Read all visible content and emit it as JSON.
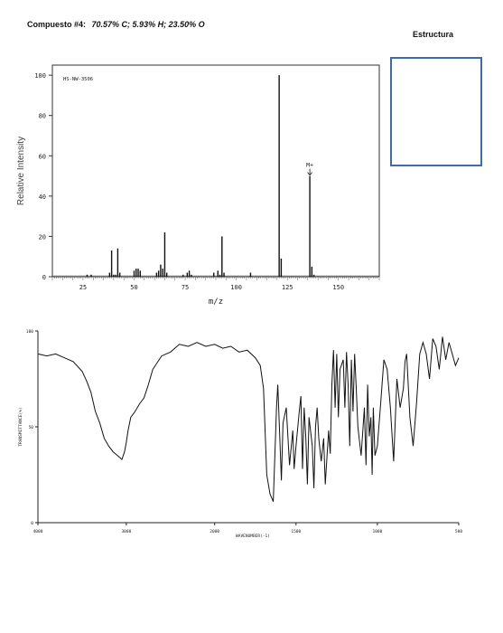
{
  "header": {
    "compound_label": "Compuesto #4:",
    "formula": "70.57% C;  5.93% H;  23.50% O",
    "structure_label": "Estructura"
  },
  "chart_data": [
    {
      "type": "bar",
      "name": "mass-spectrum",
      "code": "HS-NW-3506",
      "xlabel": "m/z",
      "ylabel": "Relative Intensity",
      "xlim": [
        10,
        170
      ],
      "ylim": [
        0,
        105
      ],
      "x_ticks": [
        25,
        50,
        75,
        100,
        125,
        150
      ],
      "y_ticks": [
        0,
        20,
        40,
        60,
        80,
        100
      ],
      "annotation": {
        "text": "M+",
        "x": 136
      },
      "peaks": [
        {
          "x": 27,
          "y": 1
        },
        {
          "x": 29,
          "y": 1
        },
        {
          "x": 38,
          "y": 2
        },
        {
          "x": 39,
          "y": 13
        },
        {
          "x": 40,
          "y": 1
        },
        {
          "x": 41,
          "y": 1
        },
        {
          "x": 42,
          "y": 14
        },
        {
          "x": 43,
          "y": 2
        },
        {
          "x": 50,
          "y": 3
        },
        {
          "x": 51,
          "y": 4
        },
        {
          "x": 52,
          "y": 4
        },
        {
          "x": 53,
          "y": 3
        },
        {
          "x": 61,
          "y": 2
        },
        {
          "x": 62,
          "y": 3
        },
        {
          "x": 63,
          "y": 6
        },
        {
          "x": 64,
          "y": 4
        },
        {
          "x": 65,
          "y": 22
        },
        {
          "x": 66,
          "y": 2
        },
        {
          "x": 74,
          "y": 1
        },
        {
          "x": 76,
          "y": 2
        },
        {
          "x": 77,
          "y": 3
        },
        {
          "x": 78,
          "y": 1
        },
        {
          "x": 89,
          "y": 2
        },
        {
          "x": 91,
          "y": 3
        },
        {
          "x": 92,
          "y": 1
        },
        {
          "x": 93,
          "y": 20
        },
        {
          "x": 94,
          "y": 2
        },
        {
          "x": 107,
          "y": 2
        },
        {
          "x": 121,
          "y": 100
        },
        {
          "x": 122,
          "y": 9
        },
        {
          "x": 136,
          "y": 50
        },
        {
          "x": 137,
          "y": 5
        },
        {
          "x": 138,
          "y": 1
        }
      ]
    },
    {
      "type": "line",
      "name": "ir-spectrum",
      "xlabel": "WAVENUMBER(-1)",
      "ylabel": "TRANSMITTANCE(%)",
      "xlim": [
        4000,
        500
      ],
      "ylim": [
        0,
        100
      ],
      "x_tick_labels": [
        {
          "x": 4000,
          "label": "4000"
        },
        {
          "x": 3000,
          "label": "3000"
        },
        {
          "x": 2000,
          "label": "2000"
        },
        {
          "x": 1500,
          "label": "1500"
        },
        {
          "x": 1000,
          "label": "1000"
        },
        {
          "x": 500,
          "label": "500"
        }
      ],
      "y_tick_labels": [
        {
          "y": 100,
          "label": "100"
        },
        {
          "y": 50,
          "label": "50"
        },
        {
          "y": 0,
          "label": "0"
        }
      ],
      "x": [
        4000,
        3900,
        3800,
        3700,
        3600,
        3500,
        3450,
        3400,
        3350,
        3300,
        3250,
        3200,
        3150,
        3100,
        3050,
        3020,
        3000,
        2980,
        2950,
        2900,
        2850,
        2800,
        2750,
        2700,
        2600,
        2500,
        2400,
        2300,
        2200,
        2100,
        2000,
        1950,
        1900,
        1850,
        1800,
        1750,
        1720,
        1700,
        1680,
        1660,
        1640,
        1620,
        1612,
        1600,
        1590,
        1580,
        1560,
        1540,
        1520,
        1512,
        1500,
        1480,
        1470,
        1460,
        1450,
        1440,
        1430,
        1420,
        1400,
        1390,
        1380,
        1370,
        1360,
        1345,
        1330,
        1320,
        1300,
        1290,
        1280,
        1270,
        1260,
        1250,
        1240,
        1230,
        1210,
        1200,
        1190,
        1180,
        1170,
        1160,
        1150,
        1140,
        1130,
        1120,
        1100,
        1080,
        1070,
        1060,
        1050,
        1040,
        1032,
        1025,
        1015,
        1000,
        980,
        960,
        940,
        920,
        900,
        880,
        860,
        840,
        830,
        820,
        800,
        780,
        760,
        740,
        720,
        700,
        680,
        660,
        640,
        620,
        600,
        580,
        560,
        540,
        520,
        500
      ],
      "y": [
        88,
        87,
        88,
        86,
        84,
        79,
        74,
        68,
        58,
        52,
        44,
        40,
        37,
        35,
        33,
        37,
        42,
        48,
        55,
        58,
        62,
        65,
        72,
        80,
        87,
        89,
        93,
        92,
        94,
        92,
        93,
        91,
        92,
        89,
        90,
        86,
        82,
        70,
        25,
        15,
        11,
        60,
        72,
        45,
        22,
        52,
        60,
        30,
        48,
        28,
        40,
        58,
        66,
        28,
        60,
        45,
        20,
        55,
        40,
        18,
        50,
        60,
        44,
        32,
        44,
        20,
        48,
        36,
        72,
        90,
        60,
        88,
        55,
        80,
        85,
        60,
        89,
        72,
        40,
        85,
        58,
        88,
        70,
        50,
        35,
        60,
        30,
        72,
        45,
        55,
        25,
        60,
        35,
        40,
        62,
        85,
        80,
        60,
        32,
        75,
        60,
        70,
        84,
        88,
        55,
        40,
        62,
        88,
        94,
        88,
        75,
        96,
        92,
        80,
        97,
        85,
        94,
        88,
        82,
        86
      ]
    }
  ]
}
